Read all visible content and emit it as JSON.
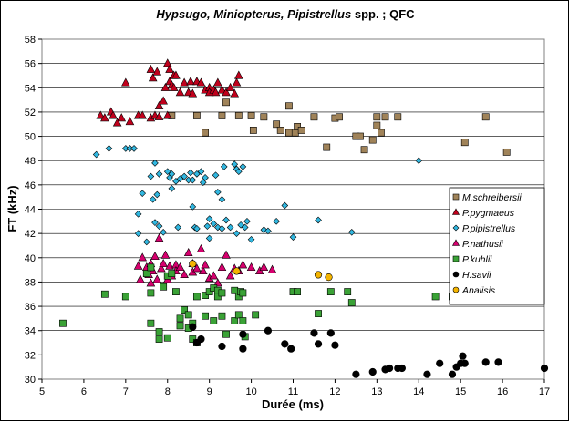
{
  "chart_data": {
    "type": "scatter",
    "title_parts": [
      {
        "text": "Hypsugo, Miniopterus, Pipistrellus",
        "italic": true
      },
      {
        "text": " spp. ; QFC",
        "italic": false
      }
    ],
    "xlabel": "Durée (ms)",
    "ylabel": "FT (kHz)",
    "xlim": [
      5,
      17
    ],
    "ylim": [
      30,
      58
    ],
    "xticks": [
      5,
      6,
      7,
      8,
      9,
      10,
      11,
      12,
      13,
      14,
      15,
      16,
      17
    ],
    "yticks": [
      30,
      32,
      34,
      36,
      38,
      40,
      42,
      44,
      46,
      48,
      50,
      52,
      54,
      56,
      58
    ],
    "grid": true,
    "legend_position": "right",
    "series": [
      {
        "name": "M.schreibersii",
        "marker": "square",
        "color": "#a08359",
        "points": [
          [
            8.1,
            51.7
          ],
          [
            8.7,
            51.7
          ],
          [
            8.9,
            50.3
          ],
          [
            9.3,
            51.7
          ],
          [
            9.4,
            52.8
          ],
          [
            9.7,
            51.7
          ],
          [
            10,
            51.7
          ],
          [
            10.05,
            50.5
          ],
          [
            10.3,
            51.6
          ],
          [
            10.6,
            51
          ],
          [
            10.7,
            50.5
          ],
          [
            10.9,
            52.5
          ],
          [
            10.9,
            50.3
          ],
          [
            11.05,
            50.3
          ],
          [
            11.1,
            50.8
          ],
          [
            11.2,
            50.5
          ],
          [
            11.5,
            51.6
          ],
          [
            11.8,
            49.1
          ],
          [
            12,
            51.5
          ],
          [
            12.1,
            51.6
          ],
          [
            12.5,
            50
          ],
          [
            12.6,
            50
          ],
          [
            12.7,
            48.9
          ],
          [
            12.9,
            49.7
          ],
          [
            13,
            51.6
          ],
          [
            13,
            50.9
          ],
          [
            13.1,
            50.3
          ],
          [
            13.2,
            51.6
          ],
          [
            13.5,
            51.6
          ],
          [
            15.1,
            49.5
          ],
          [
            15.6,
            51.6
          ],
          [
            16.1,
            48.7
          ]
        ]
      },
      {
        "name": "P.pygmaeus",
        "marker": "triangle",
        "color": "#c0001c",
        "points": [
          [
            6.4,
            51.7
          ],
          [
            6.5,
            51.5
          ],
          [
            6.65,
            52
          ],
          [
            6.7,
            51.7
          ],
          [
            6.8,
            51.1
          ],
          [
            6.9,
            51.5
          ],
          [
            7,
            54.4
          ],
          [
            7.1,
            51.2
          ],
          [
            7.3,
            51.7
          ],
          [
            7.4,
            51.7
          ],
          [
            7.6,
            51.5
          ],
          [
            7.6,
            55.5
          ],
          [
            7.65,
            54.8
          ],
          [
            7.7,
            51.7
          ],
          [
            7.75,
            55.3
          ],
          [
            7.8,
            51.6
          ],
          [
            7.8,
            52.5
          ],
          [
            7.9,
            52.9
          ],
          [
            7.95,
            54
          ],
          [
            8,
            56
          ],
          [
            8,
            51.7
          ],
          [
            8.05,
            54.5
          ],
          [
            8.05,
            55.5
          ],
          [
            8.1,
            54.2
          ],
          [
            8.15,
            55
          ],
          [
            8.15,
            54
          ],
          [
            8.2,
            55
          ],
          [
            8.3,
            53.6
          ],
          [
            8.4,
            54.4
          ],
          [
            8.5,
            53.6
          ],
          [
            8.55,
            54.5
          ],
          [
            8.6,
            53.5
          ],
          [
            8.7,
            54.5
          ],
          [
            8.8,
            54.4
          ],
          [
            8.9,
            53.8
          ],
          [
            9,
            54
          ],
          [
            9,
            53.6
          ],
          [
            9.1,
            53.8
          ],
          [
            9.15,
            53.6
          ],
          [
            9.2,
            54.4
          ],
          [
            9.3,
            53.8
          ],
          [
            9.4,
            53.6
          ],
          [
            9.5,
            54
          ],
          [
            9.6,
            53.5
          ],
          [
            9.65,
            54.4
          ],
          [
            9.7,
            55
          ]
        ]
      },
      {
        "name": "P.pipistrellus",
        "marker": "diamond",
        "color": "#31b7e0",
        "points": [
          [
            6.3,
            48.5
          ],
          [
            6.6,
            49
          ],
          [
            7,
            49
          ],
          [
            7.1,
            49
          ],
          [
            7.2,
            49
          ],
          [
            7.3,
            43.6
          ],
          [
            7.3,
            42
          ],
          [
            7.4,
            45.3
          ],
          [
            7.5,
            41.3
          ],
          [
            7.6,
            46.7
          ],
          [
            7.65,
            44.8
          ],
          [
            7.7,
            47.8
          ],
          [
            7.7,
            42.9
          ],
          [
            7.75,
            45.2
          ],
          [
            7.8,
            46.9
          ],
          [
            7.8,
            42.6
          ],
          [
            7.9,
            42.1
          ],
          [
            8,
            47.1
          ],
          [
            8.05,
            46.6
          ],
          [
            8.1,
            46.9
          ],
          [
            8.1,
            45.7
          ],
          [
            8.2,
            46.3
          ],
          [
            8.25,
            42.5
          ],
          [
            8.3,
            46.5
          ],
          [
            8.4,
            46.7
          ],
          [
            8.5,
            46.4
          ],
          [
            8.55,
            47
          ],
          [
            8.6,
            46.4
          ],
          [
            8.6,
            44.2
          ],
          [
            8.65,
            42.5
          ],
          [
            8.7,
            46.9
          ],
          [
            8.7,
            42.4
          ],
          [
            8.8,
            47.1
          ],
          [
            8.85,
            46.2
          ],
          [
            8.9,
            46.6
          ],
          [
            8.95,
            42.6
          ],
          [
            9,
            43.2
          ],
          [
            9,
            41.6
          ],
          [
            9.1,
            42.8
          ],
          [
            9.15,
            46.8
          ],
          [
            9.2,
            45.4
          ],
          [
            9.2,
            42.5
          ],
          [
            9.3,
            44.8
          ],
          [
            9.3,
            42.4
          ],
          [
            9.35,
            47.5
          ],
          [
            9.4,
            43.1
          ],
          [
            9.5,
            42.5
          ],
          [
            9.6,
            47.7
          ],
          [
            9.65,
            47.3
          ],
          [
            9.65,
            42
          ],
          [
            9.7,
            47.1
          ],
          [
            9.75,
            42.7
          ],
          [
            9.8,
            47.5
          ],
          [
            9.85,
            42.5
          ],
          [
            9.9,
            43
          ],
          [
            10,
            41.5
          ],
          [
            10.3,
            42.3
          ],
          [
            10.4,
            42.2
          ],
          [
            10.6,
            43
          ],
          [
            10.8,
            44.3
          ],
          [
            11,
            41.7
          ],
          [
            11.6,
            43.1
          ],
          [
            12.4,
            42.1
          ],
          [
            14,
            48
          ]
        ]
      },
      {
        "name": "P.nathusii",
        "marker": "triangle",
        "color": "#d6006e",
        "points": [
          [
            7.3,
            39.3
          ],
          [
            7.35,
            38.2
          ],
          [
            7.4,
            40
          ],
          [
            7.5,
            39.2
          ],
          [
            7.55,
            38.6
          ],
          [
            7.6,
            39.5
          ],
          [
            7.6,
            37.9
          ],
          [
            7.65,
            38.9
          ],
          [
            7.7,
            40.1
          ],
          [
            7.75,
            38.2
          ],
          [
            7.8,
            41.6
          ],
          [
            7.85,
            39.1
          ],
          [
            7.9,
            39.5
          ],
          [
            7.95,
            40.2
          ],
          [
            8,
            38.2
          ],
          [
            8.05,
            39.3
          ],
          [
            8.1,
            38.5
          ],
          [
            8.2,
            39.4
          ],
          [
            8.2,
            38.9
          ],
          [
            8.3,
            39.2
          ],
          [
            8.4,
            38.6
          ],
          [
            8.5,
            40.4
          ],
          [
            8.6,
            38.8
          ],
          [
            8.6,
            39.5
          ],
          [
            8.7,
            39.1
          ],
          [
            8.8,
            40.7
          ],
          [
            8.85,
            38.9
          ],
          [
            8.9,
            39.4
          ],
          [
            9,
            38.3
          ],
          [
            9.1,
            38.5
          ],
          [
            9.2,
            37.9
          ],
          [
            9.3,
            39.2
          ],
          [
            9.4,
            40.2
          ],
          [
            9.5,
            38.5
          ],
          [
            9.6,
            39.1
          ],
          [
            9.7,
            38.9
          ],
          [
            9.8,
            39.4
          ],
          [
            10,
            39.2
          ],
          [
            10.2,
            38.9
          ],
          [
            10.3,
            39.2
          ],
          [
            10.5,
            39
          ]
        ]
      },
      {
        "name": "P.kuhlii",
        "marker": "square",
        "color": "#3aa236",
        "points": [
          [
            5.5,
            34.6
          ],
          [
            6.5,
            37
          ],
          [
            7,
            36.8
          ],
          [
            7.5,
            38.7
          ],
          [
            7.6,
            39.2
          ],
          [
            7.6,
            37.1
          ],
          [
            7.6,
            34.6
          ],
          [
            7.8,
            33.9
          ],
          [
            7.8,
            33.3
          ],
          [
            7.9,
            37.6
          ],
          [
            8.0,
            38.5
          ],
          [
            8.0,
            33.4
          ],
          [
            8.1,
            38.7
          ],
          [
            8.2,
            37.2
          ],
          [
            8.3,
            35
          ],
          [
            8.3,
            34.4
          ],
          [
            8.4,
            35.7
          ],
          [
            8.5,
            35.3
          ],
          [
            8.5,
            34.2
          ],
          [
            8.6,
            34.6
          ],
          [
            8.6,
            33.3
          ],
          [
            8.7,
            36.8
          ],
          [
            8.7,
            33
          ],
          [
            8.9,
            36.9
          ],
          [
            8.9,
            35.2
          ],
          [
            9,
            37.2
          ],
          [
            9.1,
            37.5
          ],
          [
            9.1,
            34.8
          ],
          [
            9.2,
            37.3
          ],
          [
            9.2,
            36.8
          ],
          [
            9.3,
            37.1
          ],
          [
            9.3,
            35.2
          ],
          [
            9.4,
            33.7
          ],
          [
            9.6,
            37.3
          ],
          [
            9.6,
            34.8
          ],
          [
            9.7,
            36.8
          ],
          [
            9.7,
            35.3
          ],
          [
            9.75,
            37.2
          ],
          [
            9.8,
            37.1
          ],
          [
            9.8,
            34.8
          ],
          [
            9.85,
            33.5
          ],
          [
            10.1,
            35.3
          ],
          [
            11,
            37.2
          ],
          [
            11.1,
            37.2
          ],
          [
            11.6,
            35.4
          ],
          [
            11.9,
            37.2
          ],
          [
            12.3,
            37.2
          ],
          [
            12.4,
            36.3
          ],
          [
            14.4,
            36.8
          ],
          [
            14.8,
            36.8
          ]
        ]
      },
      {
        "name": "H.savii",
        "marker": "circle",
        "color": "#000000",
        "points": [
          [
            8.6,
            34.3
          ],
          [
            8.7,
            33
          ],
          [
            8.8,
            33.3
          ],
          [
            9.3,
            32.7
          ],
          [
            9.8,
            33.7
          ],
          [
            9.8,
            32.5
          ],
          [
            10.4,
            34
          ],
          [
            10.8,
            32.9
          ],
          [
            10.95,
            32.5
          ],
          [
            11.5,
            33.8
          ],
          [
            11.6,
            32.9
          ],
          [
            11.9,
            33.8
          ],
          [
            12,
            32.8
          ],
          [
            12.5,
            30.4
          ],
          [
            12.9,
            30.6
          ],
          [
            13.2,
            30.8
          ],
          [
            13.3,
            30.9
          ],
          [
            13.5,
            30.9
          ],
          [
            13.6,
            30.9
          ],
          [
            14.2,
            30.4
          ],
          [
            14.5,
            31.3
          ],
          [
            14.8,
            30.4
          ],
          [
            14.9,
            31
          ],
          [
            15,
            31.3
          ],
          [
            15.05,
            31.9
          ],
          [
            15.1,
            31.3
          ],
          [
            15.6,
            31.4
          ],
          [
            15.9,
            31.4
          ],
          [
            17,
            30.9
          ]
        ]
      },
      {
        "name": "Analisis",
        "marker": "circle",
        "color": "#f4b400",
        "points": [
          [
            8.6,
            39.5
          ],
          [
            9.65,
            38.9
          ],
          [
            11.6,
            38.6
          ],
          [
            11.85,
            38.4
          ]
        ]
      }
    ]
  }
}
